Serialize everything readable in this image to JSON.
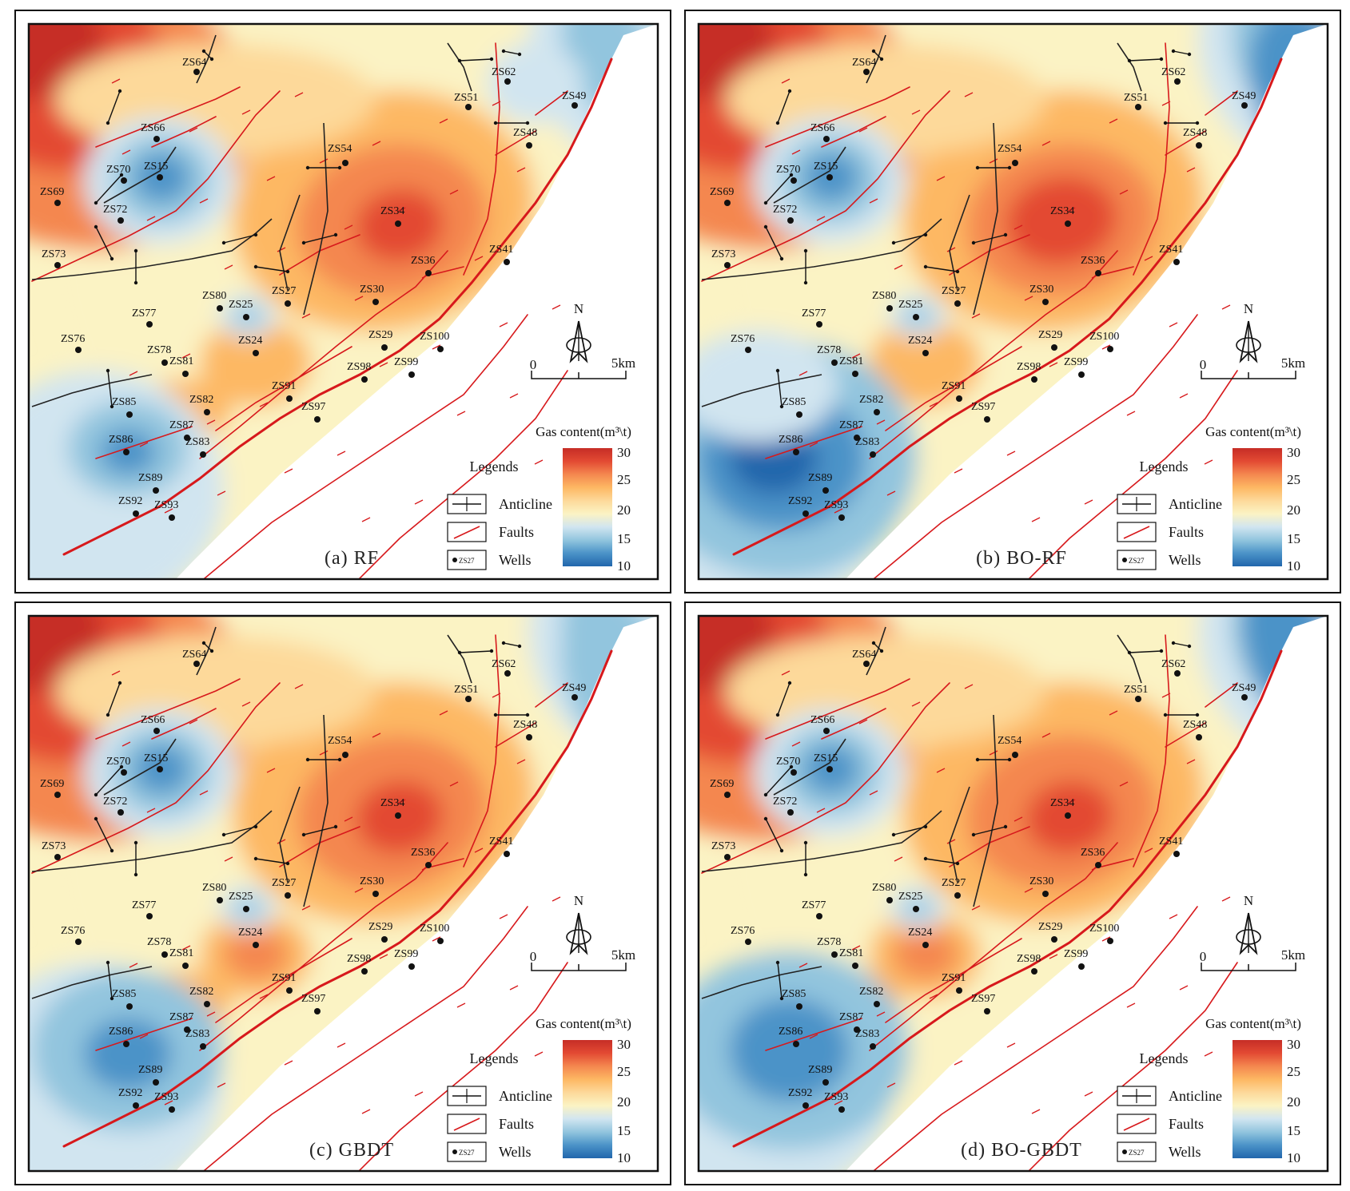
{
  "colors": {
    "ramp": [
      "#2166ac",
      "#4b93c8",
      "#92c5de",
      "#d1e5f0",
      "#fbf3c4",
      "#fdd99a",
      "#fdb863",
      "#f4874f",
      "#e34a33",
      "#c62d26"
    ],
    "fault": "#d7191c",
    "anticline": "#222222"
  },
  "panels": [
    {
      "caption": "(a) RF",
      "variant": "rf"
    },
    {
      "caption": "(b) BO-RF",
      "variant": "borf"
    },
    {
      "caption": "(c) GBDT",
      "variant": "gbdt"
    },
    {
      "caption": "(d) BO-GBDT",
      "variant": "bogbdt"
    }
  ],
  "wells": [
    "ZS64",
    "ZS62",
    "ZS51",
    "ZS49",
    "ZS66",
    "ZS48",
    "ZS54",
    "ZS70",
    "ZS15",
    "ZS69",
    "ZS72",
    "ZS34",
    "ZS73",
    "ZS41",
    "ZS36",
    "ZS27",
    "ZS30",
    "ZS80",
    "ZS77",
    "ZS25",
    "ZS76",
    "ZS24",
    "ZS29",
    "ZS100",
    "ZS78",
    "ZS81",
    "ZS98",
    "ZS99",
    "ZS91",
    "ZS82",
    "ZS85",
    "ZS97",
    "ZS87",
    "ZS86",
    "ZS83",
    "ZS89",
    "ZS92",
    "ZS93"
  ],
  "legend": {
    "title": "Legends",
    "anticline": "Anticline",
    "faults": "Faults",
    "wells": "Wells",
    "well_sample": "ZS27"
  },
  "colorbar": {
    "title": "Gas content(m³\\t)",
    "ticks": [
      "30",
      "25",
      "20",
      "15",
      "10"
    ]
  },
  "north_arrow": "N",
  "scale_bar": {
    "start": "0",
    "end": "5km"
  }
}
